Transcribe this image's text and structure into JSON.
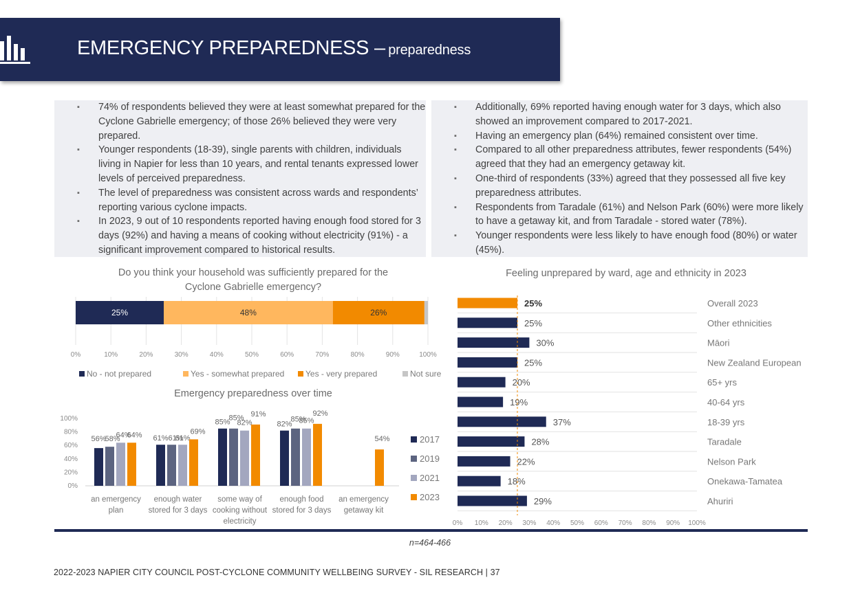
{
  "header": {
    "title": "EMERGENCY PREPAREDNESS –",
    "subtitle": "preparedness",
    "icon": "bar-chart-icon"
  },
  "bullets_left": [
    "74% of respondents believed they were at least somewhat prepared for the Cyclone Gabrielle emergency; of those 26% believed they were very prepared.",
    "Younger respondents (18-39), single parents with children, individuals living in Napier for less than 10 years, and rental tenants expressed lower levels of perceived preparedness.",
    "The level of preparedness was consistent across wards and respondents’ reporting various cyclone impacts.",
    "In 2023, 9 out of 10 respondents reported having enough food stored for 3 days (92%) and having a means of cooking without electricity (91%) - a significant improvement compared to historical results."
  ],
  "bullets_right": [
    "Additionally, 69% reported having enough water for 3 days, which also showed an improvement compared to 2017-2021.",
    "Having an emergency plan (64%) remained consistent over time.",
    "Compared to all other preparedness attributes, fewer respondents (54%) agreed that they had an emergency getaway kit.",
    "One-third of respondents (33%) agreed that they possessed all five key preparedness attributes.",
    "Respondents from Taradale (61%) and Nelson Park (60%) were more likely to have a getaway kit, and from Taradale - stored water (78%).",
    "Younger respondents were less likely to have enough food (80%) or water (45%)."
  ],
  "note": "n=464-466",
  "footer": "2022-2023 NAPIER CITY COUNCIL POST-CYCLONE COMMUNITY WELLBEING SURVEY - SIL RESEARCH | 37",
  "colors": {
    "navy": "#1f2a55",
    "light_orange": "#ffb75e",
    "orange": "#f28a00",
    "grey": "#c6c6c6",
    "slate": "#5c6480",
    "lavender": "#a3a7bf"
  },
  "chart_data": [
    {
      "type": "bar",
      "orientation": "horizontal-stacked",
      "title_lines": [
        "Do you think your household was sufficiently prepared for the",
        "Cyclone Gabrielle emergency?"
      ],
      "series": [
        {
          "name": "No -  not prepared",
          "value": 25,
          "label": "25%",
          "color": "#1f2a55"
        },
        {
          "name": "Yes - somewhat prepared",
          "value": 48,
          "label": "48%",
          "color": "#ffb75e"
        },
        {
          "name": "Yes - very prepared",
          "value": 26,
          "label": "26%",
          "color": "#f28a00"
        },
        {
          "name": "Not sure",
          "value": 1,
          "label": "",
          "color": "#c6c6c6"
        }
      ],
      "xticks": [
        "0%",
        "10%",
        "20%",
        "30%",
        "40%",
        "50%",
        "60%",
        "70%",
        "80%",
        "90%",
        "100%"
      ],
      "xlim": [
        0,
        100
      ],
      "legend": "bottom"
    },
    {
      "type": "bar",
      "orientation": "vertical-grouped",
      "title": "Emergency preparedness over time",
      "categories": [
        [
          "an emergency",
          "plan"
        ],
        [
          "enough water",
          "stored for 3 days"
        ],
        [
          "some way of",
          "cooking without",
          "electricity"
        ],
        [
          "enough food",
          "stored for 3 days"
        ],
        [
          "an emergency",
          "getaway kit"
        ]
      ],
      "series": [
        {
          "name": "2017",
          "color": "#1f2a55",
          "values": [
            56,
            61,
            85,
            82,
            null
          ],
          "labels": [
            "56%",
            "61%",
            "85%",
            "82%",
            ""
          ]
        },
        {
          "name": "2019",
          "color": "#5c6480",
          "values": [
            58,
            61,
            85,
            85,
            null
          ],
          "labels": [
            "58%",
            "61%",
            "85%",
            "85%",
            ""
          ]
        },
        {
          "name": "2021",
          "color": "#a3a7bf",
          "values": [
            64,
            61,
            82,
            85,
            null
          ],
          "labels": [
            "64%",
            "61%",
            "82%",
            "85%",
            ""
          ]
        },
        {
          "name": "2023",
          "color": "#f28a00",
          "values": [
            64,
            69,
            91,
            92,
            54
          ],
          "labels": [
            "64%",
            "69%",
            "91%",
            "92%",
            "54%"
          ]
        }
      ],
      "yticks": [
        "100%",
        "80%",
        "60%",
        "40%",
        "20%",
        "0%"
      ],
      "ylim": [
        0,
        100
      ],
      "legend": "right"
    },
    {
      "type": "bar",
      "orientation": "horizontal",
      "title": "Feeling unprepared by ward, age and ethnicity in 2023",
      "categories": [
        "Overall 2023",
        "Other ethnicities",
        "Māori",
        "New Zealand European",
        "65+ yrs",
        "40-64 yrs",
        "18-39 yrs",
        "Taradale",
        "Nelson Park",
        "Onekawa-Tamatea",
        "Ahuriri"
      ],
      "values": [
        25,
        25,
        30,
        25,
        20,
        19,
        37,
        28,
        22,
        18,
        29
      ],
      "labels": [
        "25%",
        "25%",
        "30%",
        "25%",
        "20%",
        "19%",
        "37%",
        "28%",
        "22%",
        "18%",
        "29%"
      ],
      "highlight_index": 0,
      "reference_line": 25,
      "xticks": [
        "0%",
        "10%",
        "20%",
        "30%",
        "40%",
        "50%",
        "60%",
        "70%",
        "80%",
        "90%",
        "100%"
      ],
      "xlim": [
        0,
        100
      ]
    }
  ]
}
